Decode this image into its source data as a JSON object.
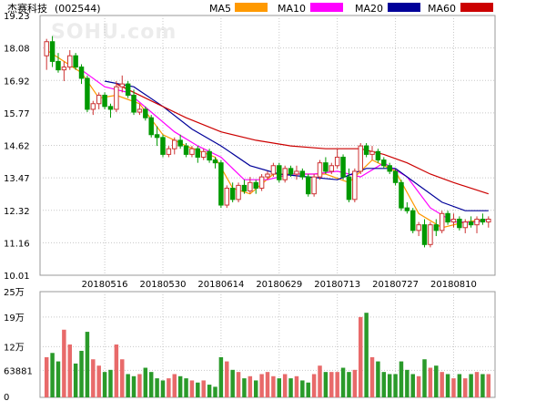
{
  "header": {
    "stock_name": "杰赛科技",
    "stock_code": "(002544)",
    "watermark": "SOHU.com"
  },
  "legend": [
    {
      "label": "MA5",
      "color": "#ff9900"
    },
    {
      "label": "MA10",
      "color": "#ff00ff"
    },
    {
      "label": "MA20",
      "color": "#000099"
    },
    {
      "label": "MA60",
      "color": "#cc0000"
    }
  ],
  "colors": {
    "up": "#cc3333",
    "down": "#009900",
    "vol_up": "#e86a6a",
    "vol_down": "#2a9a2a",
    "grid": "#c8c8c8",
    "frame": "#999999"
  },
  "chart_data": [
    {
      "type": "candlestick",
      "yticks": [
        "19.23",
        "18.08",
        "16.92",
        "15.77",
        "14.62",
        "13.47",
        "12.32",
        "11.16",
        "10.01"
      ],
      "ylim": [
        10.01,
        19.23
      ],
      "xticks": [
        "20180516",
        "20180530",
        "20180614",
        "20180629",
        "20180713",
        "20180727",
        "20180810"
      ],
      "xtick_index": [
        10,
        20,
        30,
        40,
        50,
        60,
        70
      ],
      "ohlc": [
        [
          17.8,
          18.4,
          17.3,
          18.3
        ],
        [
          18.3,
          18.5,
          17.4,
          17.6
        ],
        [
          17.6,
          17.9,
          17.2,
          17.3
        ],
        [
          17.3,
          17.6,
          16.9,
          17.4
        ],
        [
          17.4,
          18.0,
          17.3,
          17.8
        ],
        [
          17.8,
          17.9,
          17.3,
          17.4
        ],
        [
          17.4,
          17.5,
          16.8,
          17.0
        ],
        [
          17.0,
          17.1,
          15.8,
          15.9
        ],
        [
          15.9,
          16.2,
          15.7,
          16.1
        ],
        [
          16.1,
          16.5,
          15.9,
          16.4
        ],
        [
          16.4,
          16.5,
          15.9,
          16.0
        ],
        [
          16.0,
          16.1,
          15.6,
          15.9
        ],
        [
          15.9,
          16.9,
          15.8,
          16.7
        ],
        [
          16.7,
          17.1,
          16.5,
          16.8
        ],
        [
          16.8,
          16.9,
          16.3,
          16.4
        ],
        [
          16.4,
          16.6,
          15.7,
          15.8
        ],
        [
          15.8,
          16.1,
          15.7,
          15.9
        ],
        [
          15.9,
          16.0,
          15.5,
          15.6
        ],
        [
          15.6,
          15.7,
          14.9,
          15.0
        ],
        [
          15.0,
          15.3,
          14.6,
          14.9
        ],
        [
          14.9,
          15.0,
          14.2,
          14.3
        ],
        [
          14.3,
          14.6,
          14.2,
          14.5
        ],
        [
          14.5,
          14.9,
          14.3,
          14.8
        ],
        [
          14.8,
          15.0,
          14.5,
          14.6
        ],
        [
          14.6,
          14.7,
          14.2,
          14.3
        ],
        [
          14.3,
          14.6,
          14.2,
          14.5
        ],
        [
          14.5,
          14.6,
          14.0,
          14.2
        ],
        [
          14.2,
          14.5,
          14.1,
          14.4
        ],
        [
          14.4,
          14.5,
          14.0,
          14.1
        ],
        [
          14.1,
          14.2,
          13.8,
          14.0
        ],
        [
          14.0,
          14.1,
          12.4,
          12.5
        ],
        [
          12.5,
          13.2,
          12.4,
          13.1
        ],
        [
          13.1,
          13.3,
          12.6,
          12.7
        ],
        [
          12.7,
          13.3,
          12.6,
          13.2
        ],
        [
          13.2,
          13.4,
          12.9,
          13.0
        ],
        [
          13.0,
          13.5,
          12.9,
          13.3
        ],
        [
          13.3,
          13.4,
          12.9,
          13.1
        ],
        [
          13.1,
          13.6,
          13.0,
          13.5
        ],
        [
          13.5,
          13.7,
          13.4,
          13.6
        ],
        [
          13.6,
          14.0,
          13.5,
          13.9
        ],
        [
          13.9,
          14.0,
          13.3,
          13.4
        ],
        [
          13.4,
          13.9,
          13.3,
          13.8
        ],
        [
          13.8,
          13.9,
          13.5,
          13.6
        ],
        [
          13.6,
          13.9,
          13.4,
          13.7
        ],
        [
          13.7,
          13.8,
          13.4,
          13.5
        ],
        [
          13.5,
          13.6,
          12.8,
          12.9
        ],
        [
          12.9,
          13.6,
          12.8,
          13.5
        ],
        [
          13.5,
          14.1,
          13.4,
          14.0
        ],
        [
          14.0,
          14.2,
          13.6,
          13.7
        ],
        [
          13.7,
          14.0,
          13.6,
          13.9
        ],
        [
          13.9,
          14.5,
          13.8,
          14.2
        ],
        [
          14.2,
          14.3,
          13.4,
          13.5
        ],
        [
          13.5,
          13.8,
          12.6,
          12.7
        ],
        [
          12.7,
          13.8,
          12.6,
          13.7
        ],
        [
          13.7,
          14.7,
          13.6,
          14.6
        ],
        [
          14.6,
          14.7,
          14.2,
          14.3
        ],
        [
          14.3,
          14.6,
          14.1,
          14.4
        ],
        [
          14.4,
          14.5,
          14.0,
          14.1
        ],
        [
          14.1,
          14.2,
          13.8,
          13.9
        ],
        [
          13.9,
          14.0,
          13.6,
          13.7
        ],
        [
          13.7,
          13.8,
          13.2,
          13.3
        ],
        [
          13.3,
          13.4,
          12.3,
          12.4
        ],
        [
          12.4,
          12.6,
          12.2,
          12.3
        ],
        [
          12.3,
          12.4,
          11.5,
          11.6
        ],
        [
          11.6,
          11.9,
          11.4,
          11.8
        ],
        [
          11.8,
          12.0,
          11.0,
          11.1
        ],
        [
          11.1,
          11.9,
          11.0,
          11.8
        ],
        [
          11.8,
          12.0,
          11.4,
          11.6
        ],
        [
          11.6,
          12.3,
          11.5,
          12.2
        ],
        [
          12.2,
          12.3,
          11.8,
          11.9
        ],
        [
          11.9,
          12.2,
          11.7,
          12.0
        ],
        [
          12.0,
          12.1,
          11.6,
          11.7
        ],
        [
          11.7,
          12.0,
          11.5,
          11.9
        ],
        [
          11.9,
          12.1,
          11.7,
          11.8
        ],
        [
          11.8,
          12.1,
          11.5,
          12.0
        ],
        [
          12.0,
          12.2,
          11.8,
          11.9
        ],
        [
          11.9,
          12.1,
          11.7,
          12.0
        ]
      ],
      "ma": {
        "MA5": [
          [
            0,
            18.0
          ],
          [
            6,
            17.2
          ],
          [
            9,
            16.3
          ],
          [
            12,
            16.4
          ],
          [
            16,
            16.1
          ],
          [
            20,
            15.0
          ],
          [
            24,
            14.6
          ],
          [
            29,
            14.2
          ],
          [
            32,
            13.1
          ],
          [
            35,
            12.9
          ],
          [
            39,
            13.6
          ],
          [
            44,
            13.6
          ],
          [
            48,
            13.6
          ],
          [
            52,
            13.3
          ],
          [
            56,
            14.1
          ],
          [
            60,
            13.7
          ],
          [
            64,
            12.2
          ],
          [
            68,
            11.7
          ],
          [
            72,
            11.9
          ],
          [
            76,
            12.0
          ]
        ],
        "MA10": [
          [
            6,
            17.3
          ],
          [
            10,
            16.7
          ],
          [
            14,
            16.5
          ],
          [
            18,
            15.8
          ],
          [
            22,
            15.1
          ],
          [
            26,
            14.6
          ],
          [
            30,
            14.2
          ],
          [
            34,
            13.4
          ],
          [
            38,
            13.4
          ],
          [
            42,
            13.6
          ],
          [
            46,
            13.6
          ],
          [
            50,
            13.7
          ],
          [
            54,
            13.5
          ],
          [
            58,
            14.0
          ],
          [
            62,
            13.5
          ],
          [
            66,
            12.4
          ],
          [
            70,
            11.9
          ],
          [
            74,
            11.9
          ],
          [
            76,
            12.0
          ]
        ],
        "MA20": [
          [
            10,
            16.9
          ],
          [
            15,
            16.7
          ],
          [
            20,
            16.0
          ],
          [
            25,
            15.2
          ],
          [
            30,
            14.6
          ],
          [
            35,
            13.9
          ],
          [
            40,
            13.6
          ],
          [
            45,
            13.5
          ],
          [
            50,
            13.4
          ],
          [
            55,
            13.8
          ],
          [
            60,
            13.8
          ],
          [
            64,
            13.2
          ],
          [
            68,
            12.6
          ],
          [
            72,
            12.3
          ],
          [
            76,
            12.3
          ]
        ],
        "MA60": [
          [
            12,
            16.8
          ],
          [
            18,
            16.2
          ],
          [
            24,
            15.6
          ],
          [
            30,
            15.1
          ],
          [
            36,
            14.8
          ],
          [
            42,
            14.6
          ],
          [
            48,
            14.5
          ],
          [
            54,
            14.5
          ],
          [
            58,
            14.3
          ],
          [
            62,
            14.0
          ],
          [
            66,
            13.6
          ],
          [
            70,
            13.3
          ],
          [
            76,
            12.9
          ]
        ]
      }
    },
    {
      "type": "bar",
      "name": "volume",
      "yticks": [
        "25万",
        "19万",
        "12万",
        "63881",
        "0"
      ],
      "ylim": [
        0,
        250000
      ],
      "values": [
        95000,
        105000,
        85000,
        160000,
        125000,
        80000,
        110000,
        155000,
        90000,
        75000,
        60000,
        65000,
        125000,
        90000,
        55000,
        50000,
        55000,
        70000,
        60000,
        45000,
        40000,
        45000,
        55000,
        50000,
        45000,
        40000,
        35000,
        40000,
        30000,
        25000,
        95000,
        85000,
        65000,
        60000,
        45000,
        50000,
        40000,
        55000,
        60000,
        50000,
        45000,
        55000,
        45000,
        50000,
        40000,
        35000,
        55000,
        75000,
        60000,
        60000,
        60000,
        70000,
        60000,
        65000,
        190000,
        200000,
        95000,
        85000,
        60000,
        55000,
        55000,
        85000,
        65000,
        55000,
        50000,
        90000,
        70000,
        75000,
        60000,
        55000,
        45000,
        55000,
        45000,
        55000,
        60000,
        55000,
        55000
      ]
    }
  ]
}
